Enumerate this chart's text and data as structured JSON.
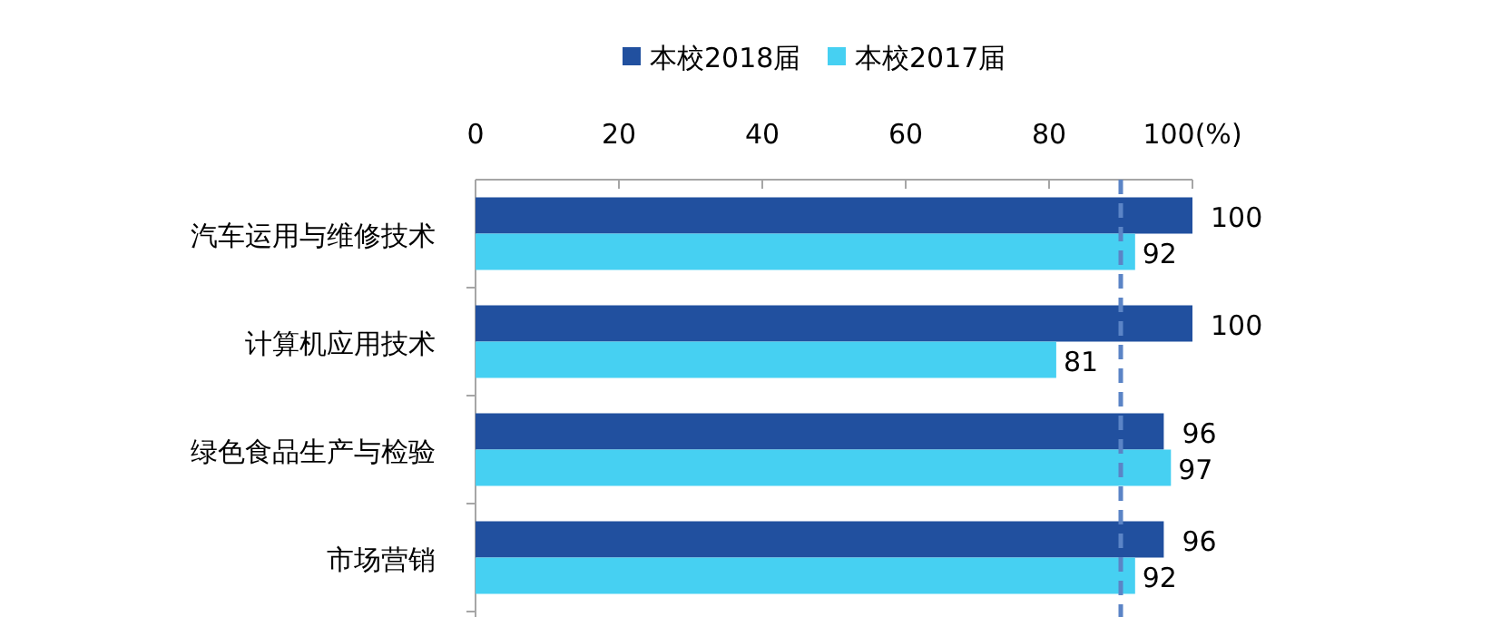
{
  "chart_data": {
    "type": "bar",
    "orientation": "horizontal",
    "categories": [
      "汽车运用与维修技术",
      "计算机应用技术",
      "绿色食品生产与检验",
      "市场营销"
    ],
    "series": [
      {
        "name": "本校2018届",
        "color": "#21509f",
        "values": [
          100,
          100,
          96,
          96
        ]
      },
      {
        "name": "本校2017届",
        "color": "#46d0f2",
        "values": [
          92,
          81,
          97,
          92
        ]
      }
    ],
    "xlim": [
      0,
      100
    ],
    "xticks": [
      0,
      20,
      40,
      60,
      80,
      {
        "value": 100,
        "label": "100(%)"
      }
    ],
    "data_labels": true,
    "legend": "top",
    "ref_lines": [
      {
        "axis": "x",
        "value": 90,
        "color": "#5b84c6",
        "line_style": "dashed"
      }
    ]
  }
}
